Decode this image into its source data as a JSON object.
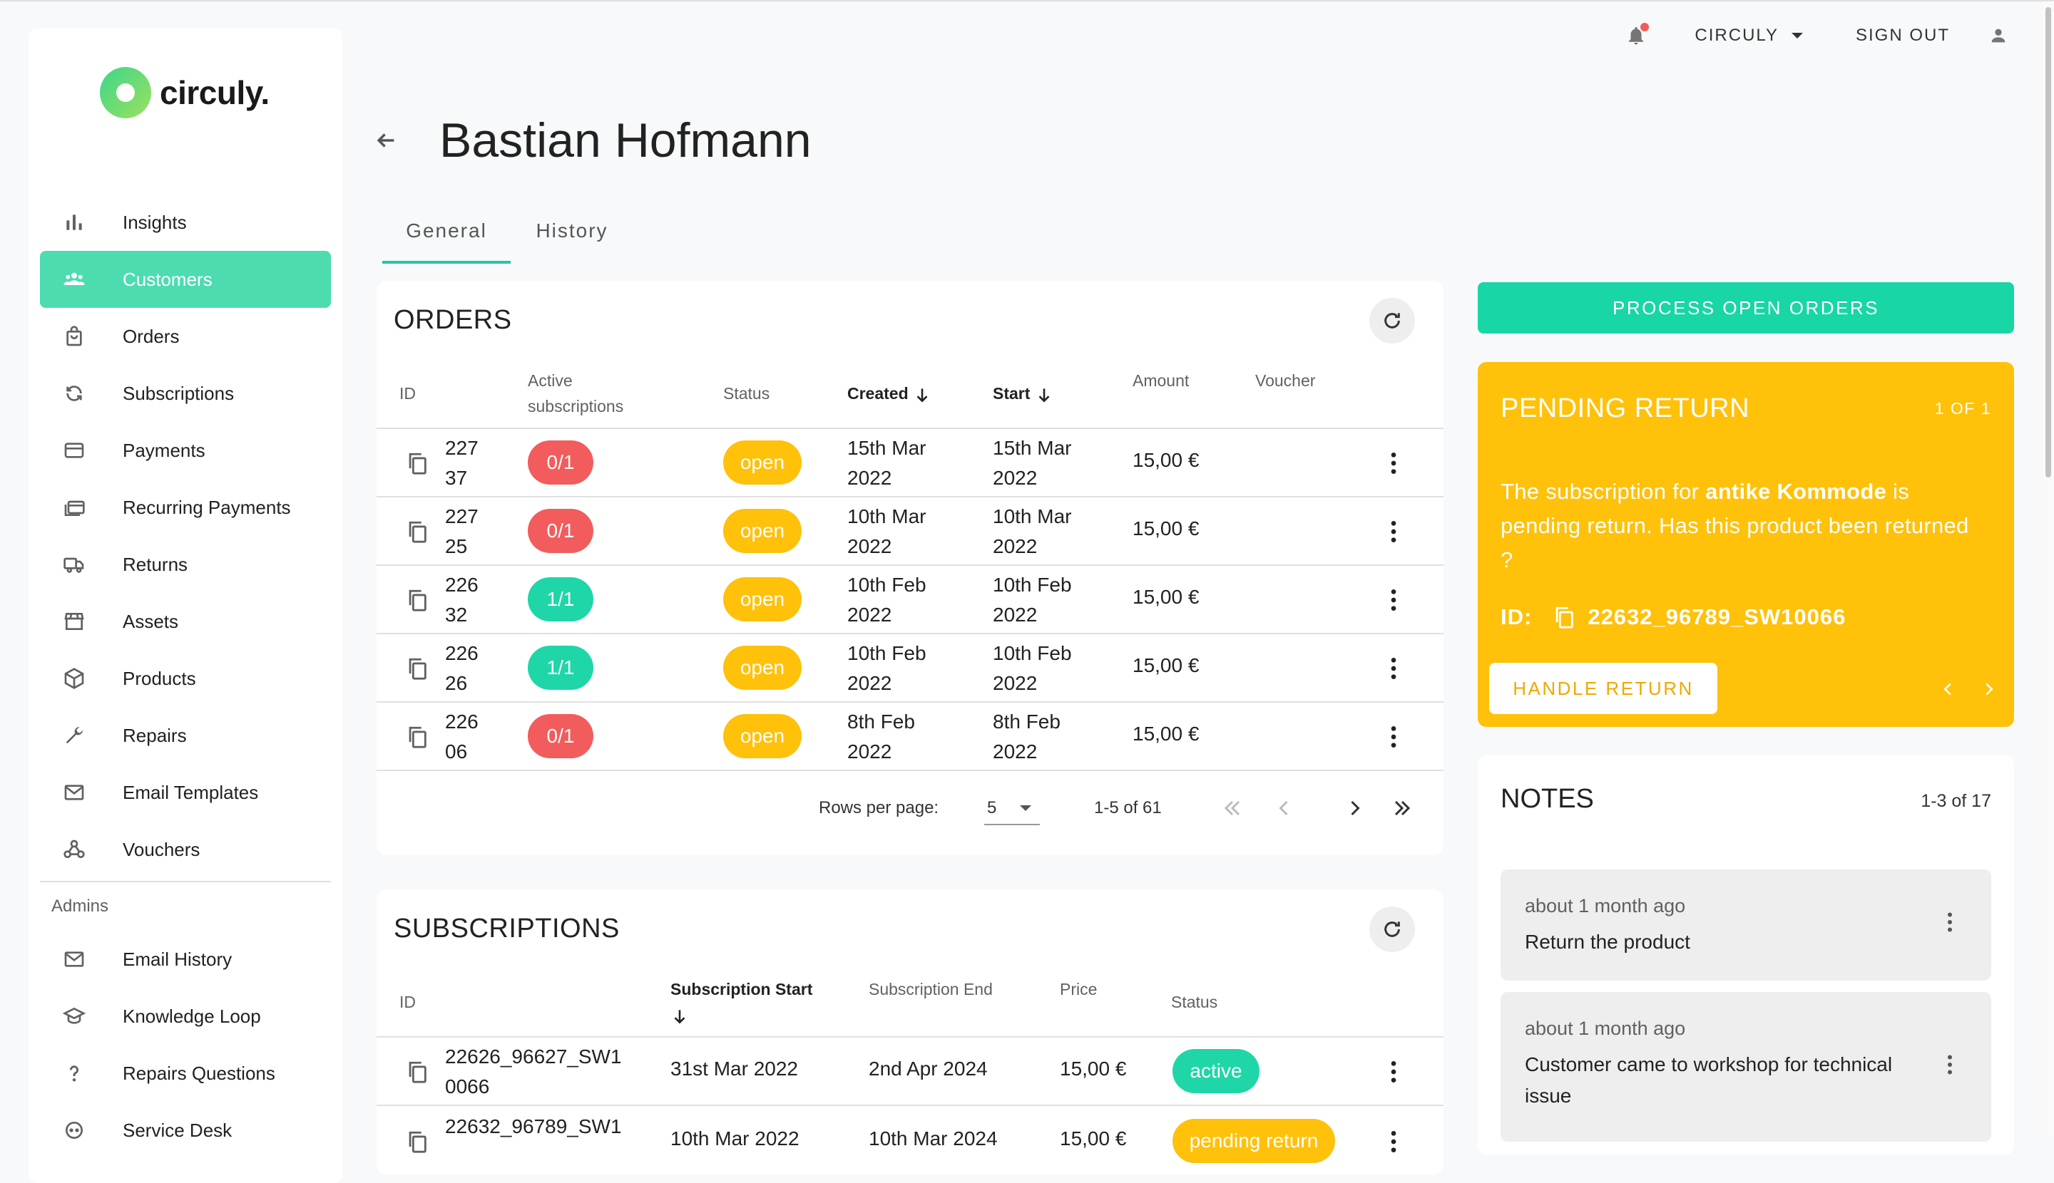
{
  "brand": {
    "name": "circuly."
  },
  "sidebar": {
    "items": [
      {
        "label": "Insights",
        "icon": "bar-chart-icon"
      },
      {
        "label": "Customers",
        "icon": "people-icon",
        "active": true
      },
      {
        "label": "Orders",
        "icon": "shopping-bag-icon"
      },
      {
        "label": "Subscriptions",
        "icon": "sync-icon"
      },
      {
        "label": "Payments",
        "icon": "credit-card-icon"
      },
      {
        "label": "Recurring Payments",
        "icon": "cards-stack-icon"
      },
      {
        "label": "Returns",
        "icon": "truck-icon"
      },
      {
        "label": "Assets",
        "icon": "store-icon"
      },
      {
        "label": "Products",
        "icon": "box-icon"
      },
      {
        "label": "Repairs",
        "icon": "wrench-icon"
      },
      {
        "label": "Email Templates",
        "icon": "mail-icon"
      },
      {
        "label": "Vouchers",
        "icon": "webhook-icon"
      }
    ],
    "section_label": "Admins",
    "admin_items": [
      {
        "label": "Email History",
        "icon": "mail-icon"
      },
      {
        "label": "Knowledge Loop",
        "icon": "school-icon"
      },
      {
        "label": "Repairs Questions",
        "icon": "question-icon"
      },
      {
        "label": "Service Desk",
        "icon": "support-icon"
      }
    ]
  },
  "topbar": {
    "account_label": "CIRCULY",
    "signout_label": "SIGN OUT",
    "notification_dot_color": "#f25c5c"
  },
  "header": {
    "title": "Bastian Hofmann",
    "tabs": [
      {
        "label": "General",
        "active": true
      },
      {
        "label": "History"
      }
    ]
  },
  "orders": {
    "title": "ORDERS",
    "columns": {
      "id": "ID",
      "active_subs": "Active subscriptions",
      "status": "Status",
      "created": "Created",
      "start": "Start",
      "amount": "Amount",
      "voucher": "Voucher"
    },
    "rows": [
      {
        "id": "227 37",
        "active": "0/1",
        "active_ok": false,
        "status": "open",
        "created": "15th Mar 2022",
        "start": "15th Mar 2022",
        "amount": "15,00 €"
      },
      {
        "id": "227 25",
        "active": "0/1",
        "active_ok": false,
        "status": "open",
        "created": "10th Mar 2022",
        "start": "10th Mar 2022",
        "amount": "15,00 €"
      },
      {
        "id": "226 32",
        "active": "1/1",
        "active_ok": true,
        "status": "open",
        "created": "10th Feb 2022",
        "start": "10th Feb 2022",
        "amount": "15,00 €"
      },
      {
        "id": "226 26",
        "active": "1/1",
        "active_ok": true,
        "status": "open",
        "created": "10th Feb 2022",
        "start": "10th Feb 2022",
        "amount": "15,00 €"
      },
      {
        "id": "226 06",
        "active": "0/1",
        "active_ok": false,
        "status": "open",
        "created": "8th Feb 2022",
        "start": "8th Feb 2022",
        "amount": "15,00 €"
      }
    ],
    "pagination": {
      "rows_per_page_label": "Rows per page:",
      "rows_per_page": "5",
      "range": "1-5 of 61"
    }
  },
  "subscriptions": {
    "title": "SUBSCRIPTIONS",
    "columns": {
      "id": "ID",
      "start": "Subscription Start",
      "end": "Subscription End",
      "price": "Price",
      "status": "Status"
    },
    "rows": [
      {
        "id": "22626_96627_SW1 0066",
        "start": "31st Mar 2022",
        "end": "2nd Apr 2024",
        "price": "15,00 €",
        "status": "active"
      },
      {
        "id": "22632_96789_SW1",
        "start": "10th Mar 2022",
        "end": "10th Mar 2024",
        "price": "15,00 €",
        "status": "pending return"
      }
    ]
  },
  "actions": {
    "process_open_orders": "PROCESS OPEN ORDERS"
  },
  "pending_return": {
    "title": "PENDING RETURN",
    "count": "1 OF 1",
    "text_before": "The subscription for ",
    "product": "antike Kommode",
    "text_after": " is pending return. Has this product been returned ?",
    "id_label": "ID:",
    "id_value": "22632_96789_SW10066",
    "button": "HANDLE RETURN"
  },
  "notes": {
    "title": "NOTES",
    "count": "1-3 of 17",
    "items": [
      {
        "ago": "about 1 month ago",
        "text": "Return the product"
      },
      {
        "ago": "about 1 month ago",
        "text": "Customer came to workshop for technical issue"
      }
    ]
  },
  "colors": {
    "accent": "#1fd6a8",
    "warning": "#ffc10a",
    "danger": "#f25c5c",
    "nav_active": "#4cdcb0"
  }
}
